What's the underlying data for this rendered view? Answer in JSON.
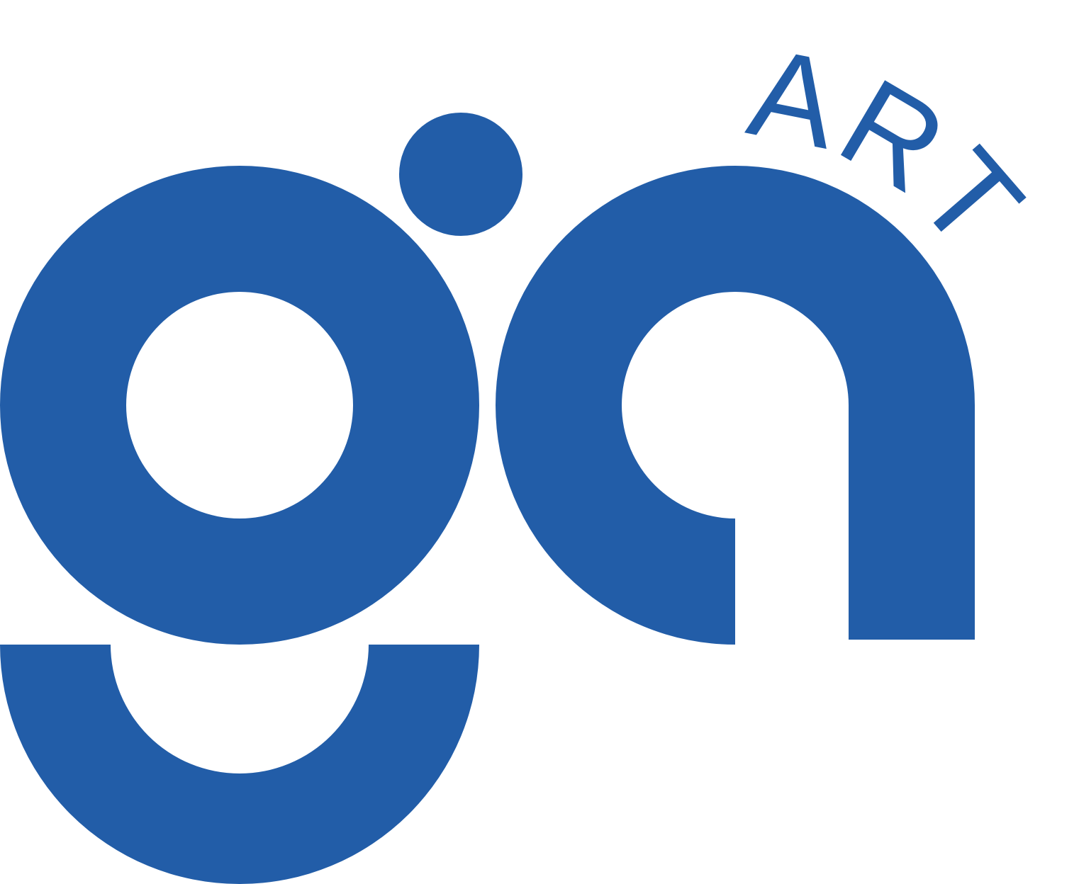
{
  "logo": {
    "text": "ART"
  }
}
